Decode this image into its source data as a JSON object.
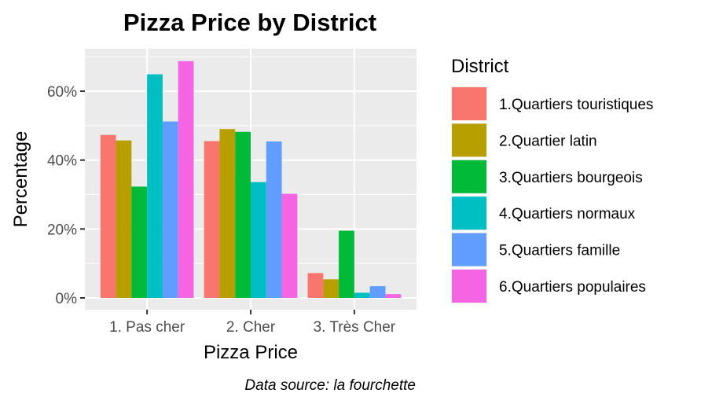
{
  "chart_data": {
    "type": "bar",
    "title": "Pizza Price by District",
    "xlabel": "Pizza Price",
    "ylabel": "Percentage",
    "caption": "Data source: la fourchette",
    "categories": [
      "1. Pas cher",
      "2. Cher",
      "3. Très Cher"
    ],
    "ylim": [
      0,
      72
    ],
    "y_ticks": [
      {
        "value": 0,
        "label": "0%"
      },
      {
        "value": 20,
        "label": "20%"
      },
      {
        "value": 40,
        "label": "40%"
      },
      {
        "value": 60,
        "label": "60%"
      }
    ],
    "grid": true,
    "legend": {
      "title": "District",
      "placement": "right"
    },
    "series": [
      {
        "name": "1.Quartiers touristiques",
        "color": "#F8766D",
        "values": [
          47.3,
          45.5,
          7.2
        ]
      },
      {
        "name": "2.Quartier latin",
        "color": "#B79F00",
        "values": [
          45.7,
          49.0,
          5.4
        ]
      },
      {
        "name": "3.Quartiers bourgeois",
        "color": "#00BA38",
        "values": [
          32.3,
          48.2,
          19.5
        ]
      },
      {
        "name": "4.Quartiers normaux",
        "color": "#00BFC4",
        "values": [
          64.9,
          33.6,
          1.5
        ]
      },
      {
        "name": "5.Quartiers famille",
        "color": "#619CFF",
        "values": [
          51.2,
          45.4,
          3.4
        ]
      },
      {
        "name": "6.Quartiers populaires",
        "color": "#F564E3",
        "values": [
          68.7,
          30.2,
          1.1
        ]
      }
    ]
  }
}
